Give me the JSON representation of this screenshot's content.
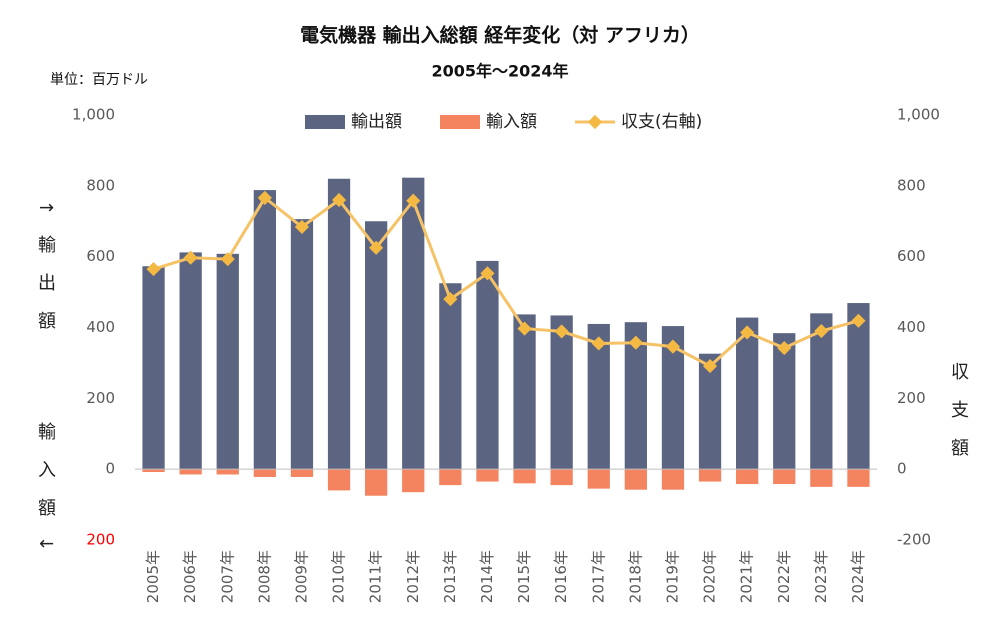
{
  "chart_data": {
    "type": "bar",
    "title": "電気機器 輸出入総額 経年変化（対 アフリカ）",
    "subtitle": "2005年～2024年",
    "unit_label": "単位：百万ドル",
    "axis_labels": {
      "y_top": "↑輸出額",
      "y_bottom": "輸入額↓",
      "y2": "収支額"
    },
    "categories": [
      "2005年",
      "2006年",
      "2007年",
      "2008年",
      "2009年",
      "2010年",
      "2011年",
      "2012年",
      "2013年",
      "2014年",
      "2015年",
      "2016年",
      "2017年",
      "2018年",
      "2019年",
      "2020年",
      "2021年",
      "2022年",
      "2023年",
      "2024年"
    ],
    "series": [
      {
        "name": "輸出額",
        "color": "#5b6480",
        "values": [
          573,
          612,
          608,
          788,
          706,
          820,
          700,
          823,
          525,
          588,
          437,
          434,
          410,
          415,
          404,
          326,
          428,
          384,
          440,
          469
        ]
      },
      {
        "name": "輸入額",
        "color": "#f4845f",
        "values": [
          -8,
          -15,
          -15,
          -22,
          -22,
          -60,
          -75,
          -65,
          -45,
          -35,
          -40,
          -45,
          -55,
          -58,
          -58,
          -35,
          -42,
          -42,
          -50,
          -50
        ]
      },
      {
        "name": "収支(右軸)",
        "color": "#f6c266",
        "type": "line",
        "axis": "y2",
        "values": [
          565,
          597,
          593,
          766,
          684,
          760,
          625,
          758,
          480,
          553,
          397,
          389,
          355,
          357,
          346,
          291,
          386,
          342,
          390,
          419
        ]
      }
    ],
    "ylim": [
      -200,
      1000
    ],
    "yticks": [
      {
        "value": -200,
        "label": "200",
        "color": "#ff0000"
      },
      0,
      200,
      400,
      600,
      800,
      {
        "value": 1000,
        "label": "1,000"
      }
    ],
    "y2lim": [
      -200,
      1000
    ],
    "y2ticks": [
      -200,
      0,
      200,
      400,
      600,
      800,
      {
        "value": 1000,
        "label": "1,000"
      }
    ],
    "legend": "top"
  }
}
